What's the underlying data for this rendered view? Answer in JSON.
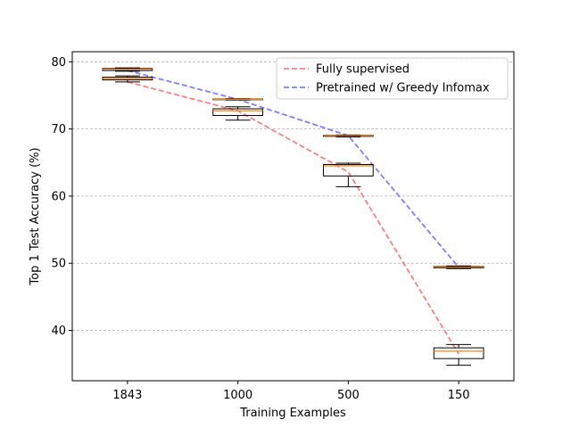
{
  "chart_data": {
    "type": "box",
    "title": "",
    "xlabel": "Training Examples",
    "ylabel": "Top 1 Test Accuracy (%)",
    "ylim": [
      32.5,
      81.5
    ],
    "yticks": [
      40,
      50,
      60,
      70,
      80
    ],
    "grid": {
      "y": true,
      "x": false,
      "style": "dashed"
    },
    "categories": [
      "1843",
      "1000",
      "500",
      "150"
    ],
    "legend": {
      "position": "top-right"
    },
    "series": [
      {
        "name": "Fully supervised",
        "color": "#ff7f7f",
        "line_style": "dashed",
        "mean_line": [
          77.0,
          72.7,
          63.6,
          36.5
        ],
        "boxes": [
          {
            "whislo": 77.0,
            "q1": 77.3,
            "med": 77.5,
            "q3": 77.7,
            "whishi": 77.9
          },
          {
            "whislo": 71.3,
            "q1": 72.0,
            "med": 72.7,
            "q3": 73.0,
            "whishi": 73.3
          },
          {
            "whislo": 61.4,
            "q1": 63.0,
            "med": 64.5,
            "q3": 64.7,
            "whishi": 64.9
          },
          {
            "whislo": 34.8,
            "q1": 35.8,
            "med": 36.9,
            "q3": 37.4,
            "whishi": 37.9
          }
        ]
      },
      {
        "name": "Pretrained w/ Greedy Infomax",
        "color": "#7f7fff",
        "line_style": "dashed",
        "mean_line": [
          78.7,
          74.4,
          69.0,
          49.4
        ],
        "boxes": [
          {
            "whislo": 78.6,
            "q1": 78.7,
            "med": 78.9,
            "q3": 79.0,
            "whishi": 79.1
          },
          {
            "whislo": 74.3,
            "q1": 74.35,
            "med": 74.4,
            "q3": 74.45,
            "whishi": 74.5
          },
          {
            "whislo": 68.8,
            "q1": 68.9,
            "med": 69.0,
            "q3": 69.05,
            "whishi": 69.1
          },
          {
            "whislo": 49.2,
            "q1": 49.3,
            "med": 49.4,
            "q3": 49.5,
            "whishi": 49.6
          }
        ]
      }
    ],
    "box_color": "#000000",
    "median_color": "#ff7f0e"
  }
}
